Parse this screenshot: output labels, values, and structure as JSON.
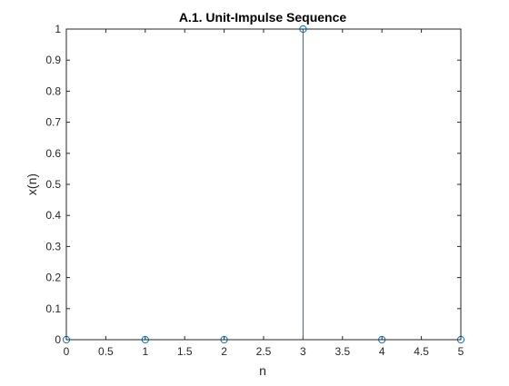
{
  "chart_data": {
    "type": "stem",
    "title": "A.1. Unit-Impulse Sequence",
    "xlabel": "n",
    "ylabel": "x(n)",
    "x": [
      0,
      1,
      2,
      3,
      4,
      5
    ],
    "y": [
      0,
      0,
      0,
      1,
      0,
      0
    ],
    "xlim": [
      0,
      5
    ],
    "ylim": [
      0,
      1
    ],
    "xticks": [
      0,
      0.5,
      1,
      1.5,
      2,
      2.5,
      3,
      3.5,
      4,
      4.5,
      5
    ],
    "xtick_labels": [
      "0",
      "0.5",
      "1",
      "1.5",
      "2",
      "2.5",
      "3",
      "3.5",
      "4",
      "4.5",
      "5"
    ],
    "yticks": [
      0,
      0.1,
      0.2,
      0.3,
      0.4,
      0.5,
      0.6,
      0.7,
      0.8,
      0.9,
      1
    ],
    "ytick_labels": [
      "0",
      "0.1",
      "0.2",
      "0.3",
      "0.4",
      "0.5",
      "0.6",
      "0.7",
      "0.8",
      "0.9",
      "1"
    ],
    "grid": false,
    "box": true,
    "marker": "circle",
    "series_color": "#0072BD"
  }
}
